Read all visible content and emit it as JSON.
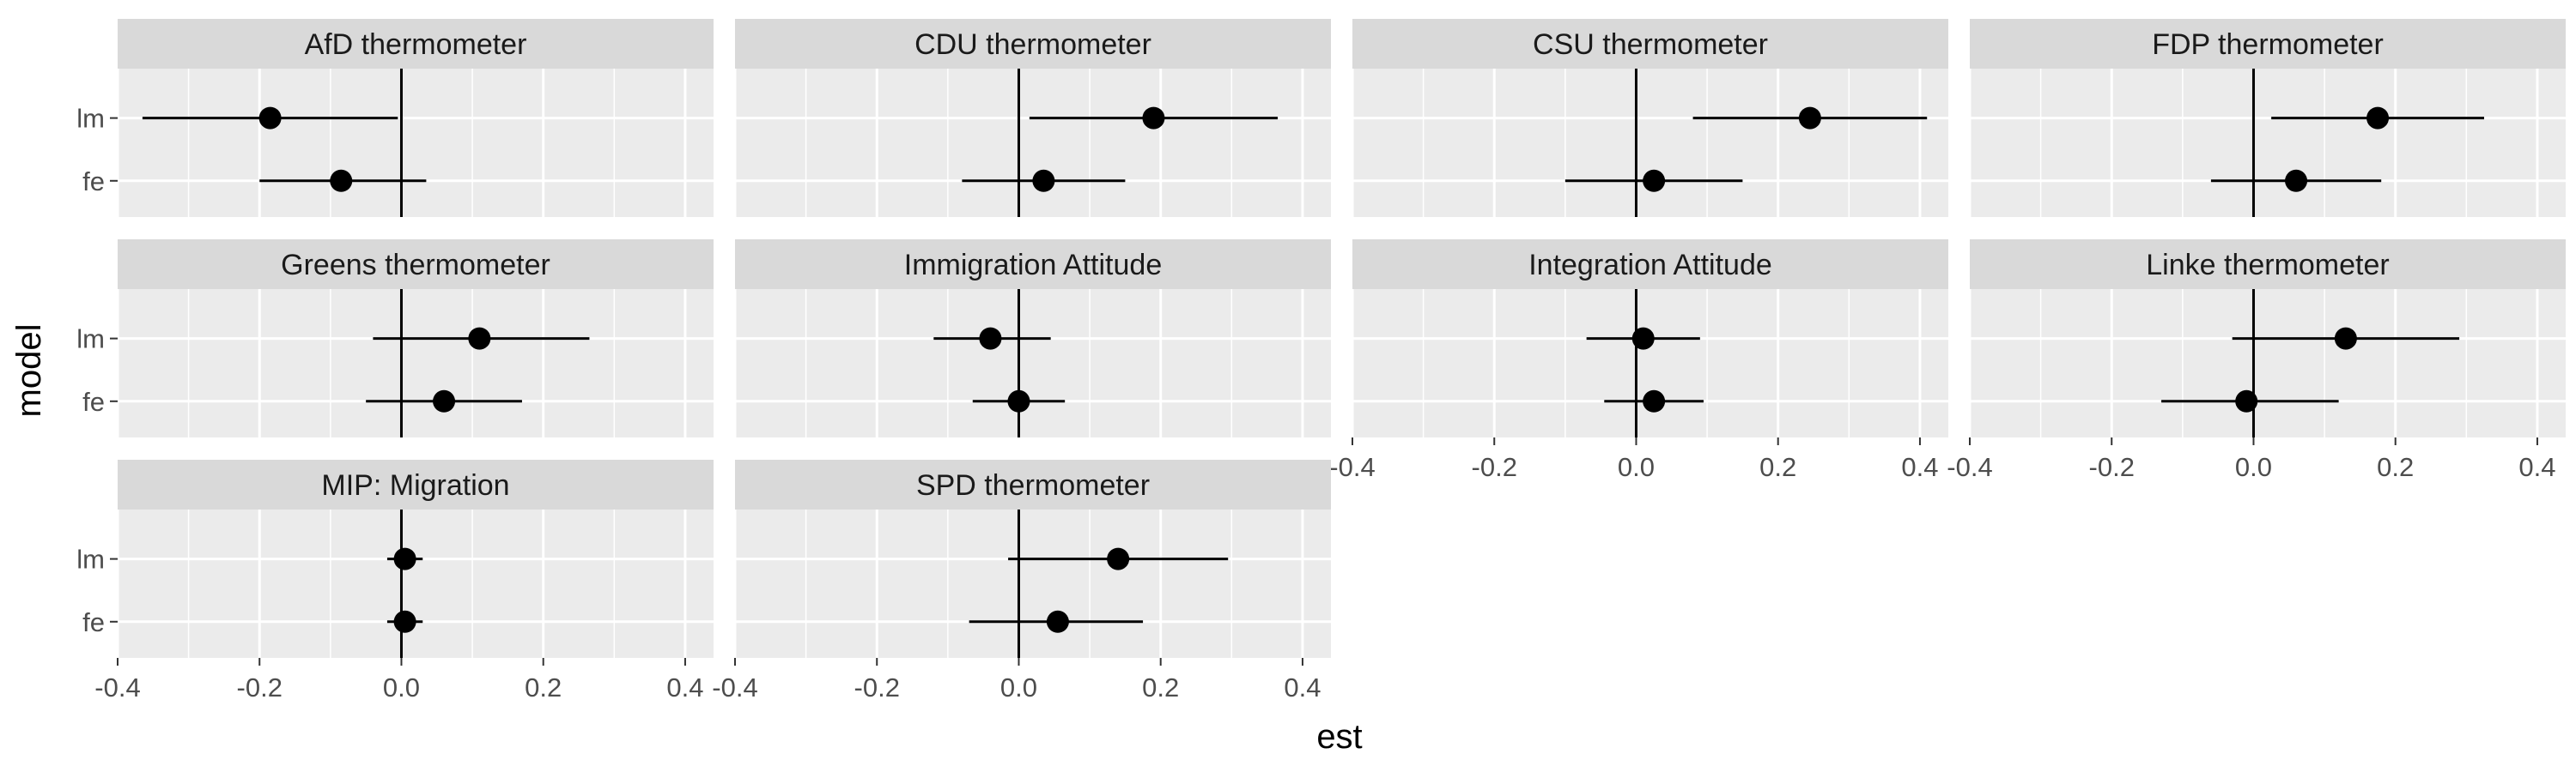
{
  "chart_data": {
    "type": "scatter",
    "subtype": "coefficient plot with error bars, faceted",
    "xlabel": "est",
    "ylabel": "model",
    "xlim": [
      -0.4,
      0.44
    ],
    "x_ticks": [
      "-0.4",
      "-0.2",
      "0.0",
      "0.2",
      "0.4"
    ],
    "y_categories": [
      "lm",
      "fe"
    ],
    "reference_line_x": 0,
    "grid": true,
    "legend": "none",
    "colors": {
      "panel_bg": "#ebebeb",
      "strip_bg": "#d9d9d9",
      "grid": "#ffffff",
      "marks": "#000000"
    },
    "facets": [
      {
        "title": "AfD thermometer",
        "points": [
          {
            "model": "lm",
            "est": -0.185,
            "lo": -0.365,
            "hi": -0.005
          },
          {
            "model": "fe",
            "est": -0.085,
            "lo": -0.2,
            "hi": 0.035
          }
        ]
      },
      {
        "title": "CDU thermometer",
        "points": [
          {
            "model": "lm",
            "est": 0.19,
            "lo": 0.015,
            "hi": 0.365
          },
          {
            "model": "fe",
            "est": 0.035,
            "lo": -0.08,
            "hi": 0.15
          }
        ]
      },
      {
        "title": "CSU thermometer",
        "points": [
          {
            "model": "lm",
            "est": 0.245,
            "lo": 0.08,
            "hi": 0.41
          },
          {
            "model": "fe",
            "est": 0.025,
            "lo": -0.1,
            "hi": 0.15
          }
        ]
      },
      {
        "title": "FDP thermometer",
        "points": [
          {
            "model": "lm",
            "est": 0.175,
            "lo": 0.025,
            "hi": 0.325
          },
          {
            "model": "fe",
            "est": 0.06,
            "lo": -0.06,
            "hi": 0.18
          }
        ]
      },
      {
        "title": "Greens thermometer",
        "points": [
          {
            "model": "lm",
            "est": 0.11,
            "lo": -0.04,
            "hi": 0.265
          },
          {
            "model": "fe",
            "est": 0.06,
            "lo": -0.05,
            "hi": 0.17
          }
        ]
      },
      {
        "title": "Immigration Attitude",
        "points": [
          {
            "model": "lm",
            "est": -0.04,
            "lo": -0.12,
            "hi": 0.045
          },
          {
            "model": "fe",
            "est": 0.0,
            "lo": -0.065,
            "hi": 0.065
          }
        ]
      },
      {
        "title": "Integration Attitude",
        "points": [
          {
            "model": "lm",
            "est": 0.01,
            "lo": -0.07,
            "hi": 0.09
          },
          {
            "model": "fe",
            "est": 0.025,
            "lo": -0.045,
            "hi": 0.095
          }
        ]
      },
      {
        "title": "Linke thermometer",
        "points": [
          {
            "model": "lm",
            "est": 0.13,
            "lo": -0.03,
            "hi": 0.29
          },
          {
            "model": "fe",
            "est": -0.01,
            "lo": -0.13,
            "hi": 0.12
          }
        ]
      },
      {
        "title": "MIP: Migration",
        "points": [
          {
            "model": "lm",
            "est": 0.005,
            "lo": -0.02,
            "hi": 0.03
          },
          {
            "model": "fe",
            "est": 0.005,
            "lo": -0.02,
            "hi": 0.03
          }
        ]
      },
      {
        "title": "SPD thermometer",
        "points": [
          {
            "model": "lm",
            "est": 0.14,
            "lo": -0.015,
            "hi": 0.295
          },
          {
            "model": "fe",
            "est": 0.055,
            "lo": -0.07,
            "hi": 0.175
          }
        ]
      }
    ]
  }
}
